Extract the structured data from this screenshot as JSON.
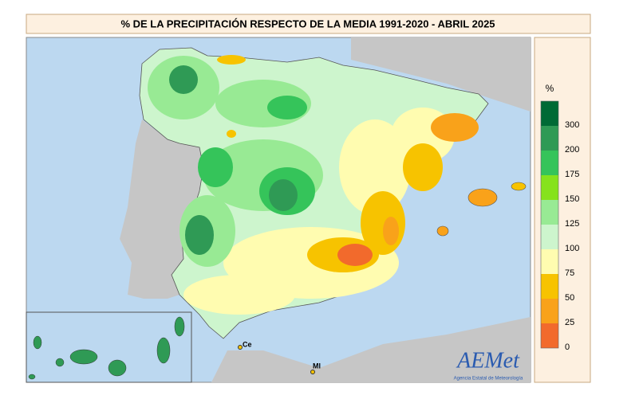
{
  "header": {
    "title": "% DE LA PRECIPITACIÓN RESPECTO DE LA MEDIA 1991-2020 - ABRIL 2025"
  },
  "legend": {
    "unit": "%",
    "ticks": [
      300,
      200,
      175,
      150,
      125,
      100,
      75,
      50,
      25,
      0
    ],
    "colors": [
      "#006a35",
      "#2f9a55",
      "#35c45a",
      "#86e21c",
      "#98ea94",
      "#cdf5cd",
      "#fffcb0",
      "#f7c300",
      "#f9a21a",
      "#f26a2c"
    ]
  },
  "places": [
    "Ce",
    "Ml"
  ],
  "logo": {
    "name": "AEMet",
    "subtitle": "Agencia Estatal de Meteorología"
  }
}
